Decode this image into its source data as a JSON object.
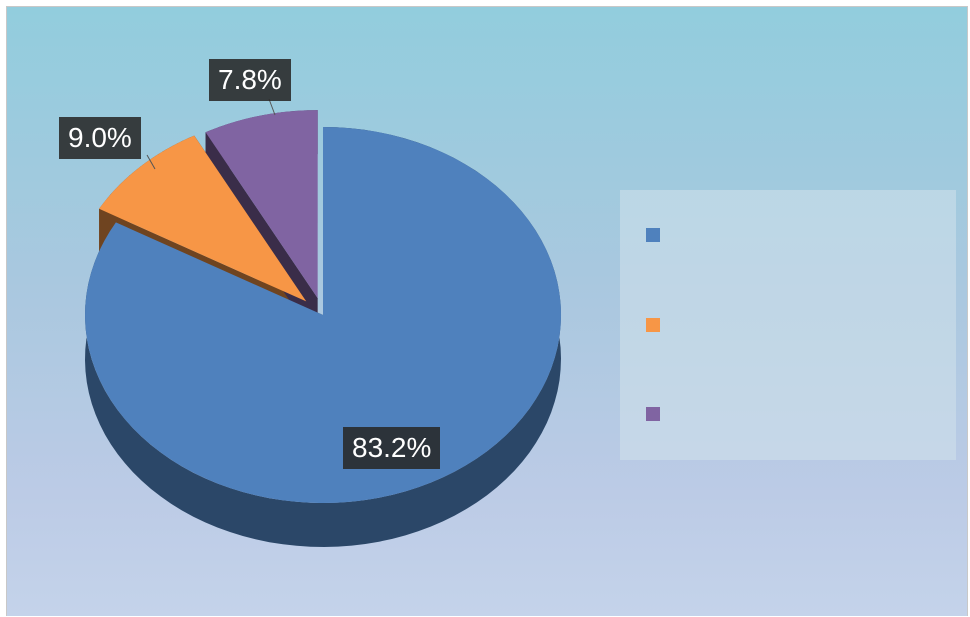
{
  "chart_data": {
    "type": "pie",
    "categories": [
      "",
      "",
      ""
    ],
    "values": [
      83.2,
      9.0,
      7.8
    ],
    "data_labels": [
      "83.2%",
      "9.0%",
      "7.8%"
    ],
    "colors": [
      "#4f81bd",
      "#f79646",
      "#8064a2"
    ],
    "exploded": true,
    "style": "3d",
    "title": "",
    "legend": "right"
  }
}
